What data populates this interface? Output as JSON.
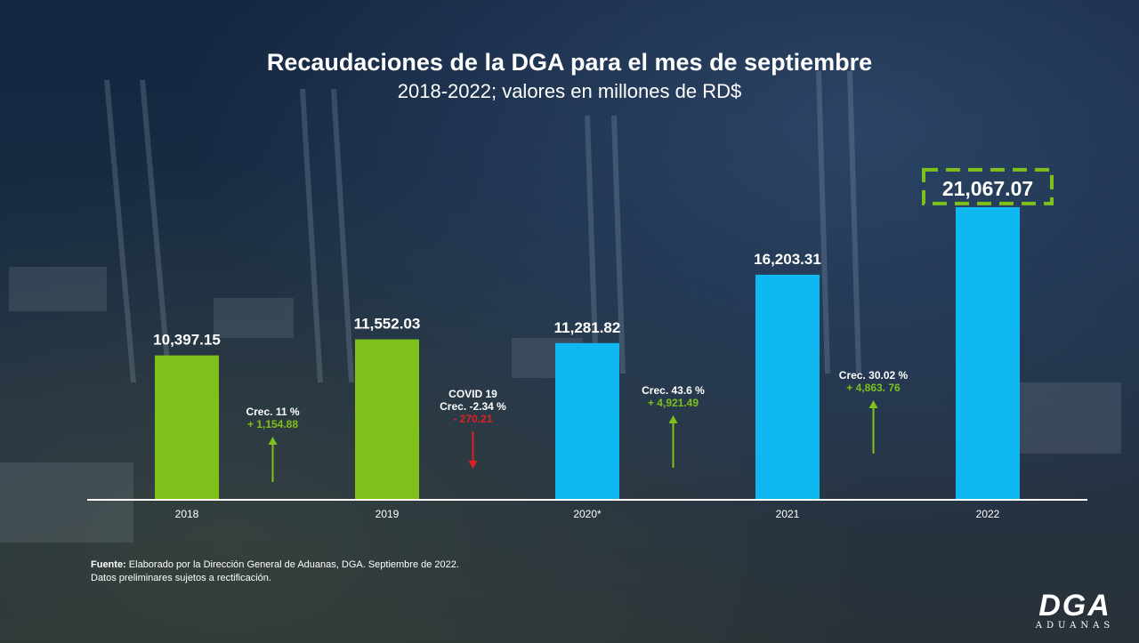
{
  "title": "Recaudaciones de la DGA para el mes de septiembre",
  "subtitle": "2018-2022; valores en millones de RD$",
  "chart_data": {
    "type": "bar",
    "title": "Recaudaciones de la DGA para el mes de septiembre",
    "subtitle": "2018-2022; valores en millones de RD$",
    "categories": [
      "2018",
      "2019",
      "2020*",
      "2021",
      "2022"
    ],
    "values": [
      10397.15,
      11552.03,
      11281.82,
      16203.31,
      21067.07
    ],
    "value_labels": [
      "10,397.15",
      "11,552.03",
      "11,281.82",
      "16,203.31",
      "21,067.07"
    ],
    "bar_colors": [
      "#7dc11a",
      "#7dc11a",
      "#0fb8f0",
      "#0fb8f0",
      "#0fb8f0"
    ],
    "highlight_index": 4,
    "highlight_color": "#7dc11a",
    "grid": false,
    "legend": "none",
    "annotations": [
      {
        "lines": [
          "Crec. 11 %"
        ],
        "delta": "+ 1,154.88",
        "direction": "up",
        "color": "#7dc11a"
      },
      {
        "lines": [
          "COVID  19",
          "Crec. -2.34  %"
        ],
        "delta": "- 270.21",
        "direction": "down",
        "color": "#e02020"
      },
      {
        "lines": [
          "Crec. 43.6 %"
        ],
        "delta": "+ 4,921.49",
        "direction": "up",
        "color": "#7dc11a"
      },
      {
        "lines": [
          "Crec. 30.02 %"
        ],
        "delta": "+ 4,863. 76",
        "direction": "up",
        "color": "#7dc11a"
      }
    ]
  },
  "source": {
    "label": "Fuente:",
    "text": " Elaborado por la Dirección General de Aduanas, DGA. Septiembre de 2022.",
    "note": "Datos preliminares sujetos a rectificación."
  },
  "logo": {
    "mark": "DGA",
    "sub": "ADUANAS"
  }
}
